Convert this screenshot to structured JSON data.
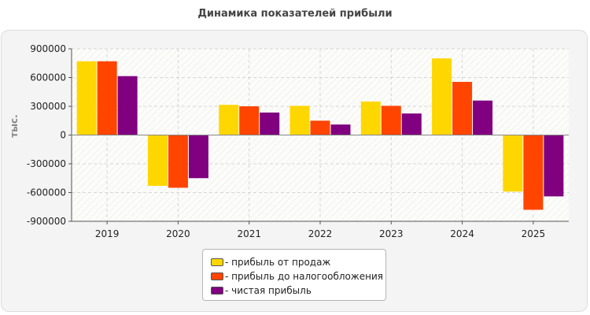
{
  "chart_data": {
    "type": "bar",
    "title": "Динамика показателей прибыли",
    "ylabel": "тыс.",
    "xlabel": "",
    "ylim": [
      -900000,
      900000
    ],
    "yticks": [
      900000,
      600000,
      300000,
      0,
      -300000,
      -600000,
      -900000
    ],
    "ytick_labels": [
      "900000",
      "600000",
      "300000",
      "0",
      "-300000",
      "-600000",
      "-900000"
    ],
    "categories": [
      "2019",
      "2020",
      "2021",
      "2022",
      "2023",
      "2024",
      "2025"
    ],
    "grid": true,
    "legend_position": "bottom",
    "series": [
      {
        "name": "- прибыль от продаж",
        "color": "#ffd700",
        "values": [
          770000,
          -530000,
          315000,
          305000,
          350000,
          800000,
          -590000
        ]
      },
      {
        "name": "- прибыль до налогообложения",
        "color": "#ff4500",
        "values": [
          770000,
          -550000,
          300000,
          150000,
          305000,
          555000,
          -780000
        ]
      },
      {
        "name": "- чистая прибыль",
        "color": "#800080",
        "values": [
          615000,
          -450000,
          235000,
          110000,
          225000,
          360000,
          -640000
        ]
      }
    ]
  }
}
